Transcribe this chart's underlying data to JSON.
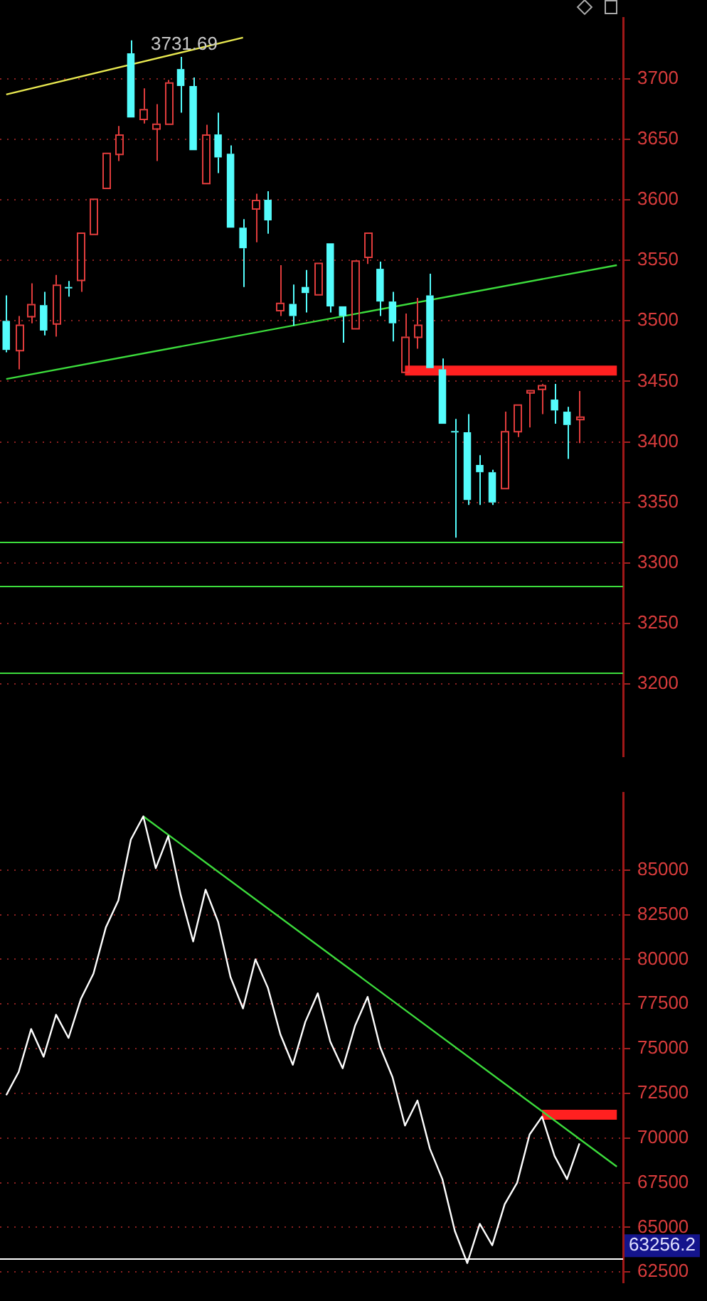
{
  "chart_data": [
    {
      "type": "candlestick",
      "categories": [
        null,
        null,
        null,
        null,
        null,
        null,
        null,
        null,
        null,
        null,
        null,
        null,
        null,
        null,
        null,
        null,
        null,
        null,
        null,
        null,
        null,
        null,
        null,
        null,
        null,
        null,
        null,
        null,
        null,
        null,
        null,
        null,
        null,
        null,
        null,
        null,
        null,
        null,
        null,
        null,
        null,
        null,
        null,
        null,
        null,
        null,
        null,
        null,
        null,
        null
      ],
      "ohlc": [
        [
          3500,
          3521,
          3474,
          3476
        ],
        [
          3476,
          3504,
          3460,
          3497
        ],
        [
          3504,
          3531,
          3498,
          3514
        ],
        [
          3513,
          3524,
          3488,
          3492
        ],
        [
          3498,
          3538,
          3487,
          3530
        ],
        [
          3528,
          3533,
          3520,
          3527
        ],
        [
          3534,
          3573,
          3524,
          3573
        ],
        [
          3572,
          3601,
          3572,
          3601
        ],
        [
          3610,
          3639,
          3610,
          3639
        ],
        [
          3638,
          3661,
          3632,
          3654
        ],
        [
          3721,
          3731.69,
          3668,
          3668
        ],
        [
          3667,
          3692,
          3663,
          3675
        ],
        [
          3659,
          3679,
          3632,
          3663
        ],
        [
          3663,
          3699,
          3663,
          3697
        ],
        [
          3708,
          3718,
          3672,
          3694
        ],
        [
          3694,
          3701,
          3641,
          3641
        ],
        [
          3614,
          3662,
          3614,
          3654
        ],
        [
          3654,
          3672,
          3622,
          3635
        ],
        [
          3638,
          3645,
          3577,
          3577
        ],
        [
          3577,
          3584,
          3528,
          3560
        ],
        [
          3593,
          3605,
          3565,
          3600
        ],
        [
          3600,
          3607,
          3572,
          3583
        ],
        [
          3509,
          3546,
          3504,
          3515
        ],
        [
          3514,
          3530,
          3496,
          3504
        ],
        [
          3528,
          3542,
          3507,
          3523
        ],
        [
          3522,
          3548,
          3522,
          3548
        ],
        [
          3564,
          3564,
          3507,
          3512
        ],
        [
          3512,
          3512,
          3482,
          3504
        ],
        [
          3494,
          3550,
          3494,
          3550
        ],
        [
          3553,
          3573,
          3547,
          3573
        ],
        [
          3543,
          3549,
          3504,
          3516
        ],
        [
          3516,
          3524,
          3483,
          3498
        ],
        [
          3458,
          3506,
          3458,
          3487
        ],
        [
          3487,
          3519,
          3477,
          3497
        ],
        [
          3521,
          3539,
          3461,
          3461
        ],
        [
          3460,
          3469,
          3415,
          3415
        ],
        [
          3409,
          3419,
          3321,
          3408
        ],
        [
          3408,
          3423,
          3348,
          3352
        ],
        [
          3381,
          3389,
          3348,
          3375
        ],
        [
          3375,
          3377,
          3348,
          3350
        ],
        [
          3362,
          3425,
          3362,
          3409
        ],
        [
          3409,
          3431,
          3404,
          3431
        ],
        [
          3441,
          3443,
          3412,
          3443
        ],
        [
          3444,
          3448,
          3423,
          3447
        ],
        [
          3435,
          3448,
          3415,
          3426
        ],
        [
          3425,
          3429,
          3386,
          3414
        ],
        [
          3419,
          3442,
          3399,
          3421
        ],
        null,
        null,
        null
      ],
      "colors": [
        "#54fcfc",
        "#e03c3c",
        "#e03c3c",
        "#54fcfc",
        "#e03c3c",
        "#54fcfc",
        "#e03c3c",
        "#e03c3c",
        "#e03c3c",
        "#e03c3c",
        "#54fcfc",
        "#e03c3c",
        "#e03c3c",
        "#e03c3c",
        "#54fcfc",
        "#54fcfc",
        "#e03c3c",
        "#54fcfc",
        "#54fcfc",
        "#54fcfc",
        "#e03c3c",
        "#54fcfc",
        "#e03c3c",
        "#54fcfc",
        "#54fcfc",
        "#e03c3c",
        "#54fcfc",
        "#54fcfc",
        "#e03c3c",
        "#e03c3c",
        "#54fcfc",
        "#54fcfc",
        "#e03c3c",
        "#e03c3c",
        "#54fcfc",
        "#54fcfc",
        "#54fcfc",
        "#54fcfc",
        "#54fcfc",
        "#54fcfc",
        "#e03c3c",
        "#e03c3c",
        "#e03c3c",
        "#e03c3c",
        "#54fcfc",
        "#54fcfc",
        "#e03c3c",
        null,
        null,
        null
      ],
      "series": [
        {
          "type": "line",
          "color": "#e8e850",
          "values": [
            3687,
            null,
            null,
            null,
            null,
            null,
            null,
            null,
            null,
            null,
            null,
            null,
            null,
            null,
            null,
            null,
            null,
            null,
            null,
            3734,
            null,
            null,
            null,
            null,
            null,
            null,
            null,
            null,
            null,
            null,
            null,
            null,
            null,
            null,
            null,
            null,
            null,
            null,
            null,
            null,
            null,
            null,
            null,
            null,
            null,
            null,
            null,
            null,
            null,
            null
          ]
        },
        {
          "type": "line",
          "color": "#3cdc3c",
          "values": [
            3452,
            null,
            null,
            null,
            null,
            null,
            null,
            null,
            null,
            null,
            null,
            null,
            null,
            null,
            null,
            null,
            null,
            null,
            null,
            null,
            null,
            null,
            null,
            null,
            null,
            null,
            null,
            null,
            null,
            null,
            null,
            null,
            null,
            null,
            null,
            null,
            null,
            null,
            null,
            null,
            null,
            null,
            null,
            null,
            null,
            null,
            null,
            null,
            null,
            3546
          ]
        },
        {
          "type": "line",
          "color": "#ff2020",
          "values": [
            null,
            null,
            null,
            null,
            null,
            null,
            null,
            null,
            null,
            null,
            null,
            null,
            null,
            null,
            null,
            null,
            null,
            null,
            null,
            null,
            null,
            null,
            null,
            null,
            null,
            null,
            null,
            null,
            null,
            null,
            null,
            null,
            3459,
            3459,
            3459,
            3459,
            3459,
            3459,
            3459,
            3459,
            3459,
            3459,
            3459,
            3459,
            3459,
            3459,
            3459,
            3459,
            3459,
            3459
          ]
        }
      ],
      "ylim": [
        3140,
        3750
      ],
      "yticks": [
        3200,
        3250,
        3300,
        3350,
        3400,
        3450,
        3500,
        3550,
        3600,
        3650,
        3700
      ],
      "grid": "y",
      "tick_labels": "y",
      "annotations": [
        "3731.69"
      ],
      "ref_lines": [
        {
          "axis": "y",
          "value": 3317,
          "color": "#3cdc3c"
        },
        {
          "axis": "y",
          "value": 3281,
          "color": "#3cdc3c"
        },
        {
          "axis": "y",
          "value": 3209,
          "color": "#3cdc3c"
        }
      ]
    },
    {
      "type": "line",
      "categories": [
        null,
        null,
        null,
        null,
        null,
        null,
        null,
        null,
        null,
        null,
        null,
        null,
        null,
        null,
        null,
        null,
        null,
        null,
        null,
        null,
        null,
        null,
        null,
        null,
        null,
        null,
        null,
        null,
        null,
        null,
        null,
        null,
        null,
        null,
        null,
        null,
        null,
        null,
        null,
        null,
        null,
        null,
        null,
        null,
        null,
        null,
        null,
        null,
        null,
        null
      ],
      "series": [
        {
          "color": "#ffffff",
          "values": [
            72400,
            73700,
            76100,
            74550,
            76900,
            75600,
            77800,
            79200,
            81800,
            83300,
            86700,
            88000,
            85100,
            86900,
            83600,
            81000,
            83900,
            82100,
            79000,
            77250,
            80000,
            78400,
            75800,
            74100,
            76500,
            78100,
            75400,
            73900,
            76300,
            77900,
            75100,
            73400,
            70700,
            72100,
            69400,
            67700,
            64800,
            63000,
            65200,
            64000,
            66300,
            67500,
            70200,
            71200,
            69000,
            67700,
            69700,
            null,
            null,
            null
          ]
        },
        {
          "color": "#3cdc3c",
          "values": [
            null,
            null,
            null,
            null,
            null,
            null,
            null,
            null,
            null,
            null,
            null,
            88000,
            null,
            null,
            null,
            null,
            null,
            null,
            null,
            null,
            null,
            null,
            null,
            null,
            null,
            null,
            null,
            null,
            null,
            null,
            null,
            null,
            null,
            null,
            null,
            null,
            null,
            null,
            null,
            null,
            null,
            null,
            null,
            null,
            null,
            null,
            null,
            null,
            null,
            68400
          ]
        },
        {
          "color": "#ff2020",
          "values": [
            null,
            null,
            null,
            null,
            null,
            null,
            null,
            null,
            null,
            null,
            null,
            null,
            null,
            null,
            null,
            null,
            null,
            null,
            null,
            null,
            null,
            null,
            null,
            null,
            null,
            null,
            null,
            null,
            null,
            null,
            null,
            null,
            null,
            null,
            null,
            null,
            null,
            null,
            null,
            null,
            null,
            null,
            null,
            71300,
            71300,
            71300,
            71300,
            71300,
            71300,
            71300
          ]
        }
      ],
      "ylim": [
        61900,
        89300
      ],
      "yticks": [
        62500,
        65000,
        67500,
        70000,
        72500,
        75000,
        77500,
        80000,
        82500,
        85000
      ],
      "grid": "y",
      "tick_labels": "y",
      "ref_lines": [
        {
          "axis": "y",
          "value": 63256.2,
          "label": "63256.2",
          "color": "#ffffff"
        }
      ]
    }
  ]
}
